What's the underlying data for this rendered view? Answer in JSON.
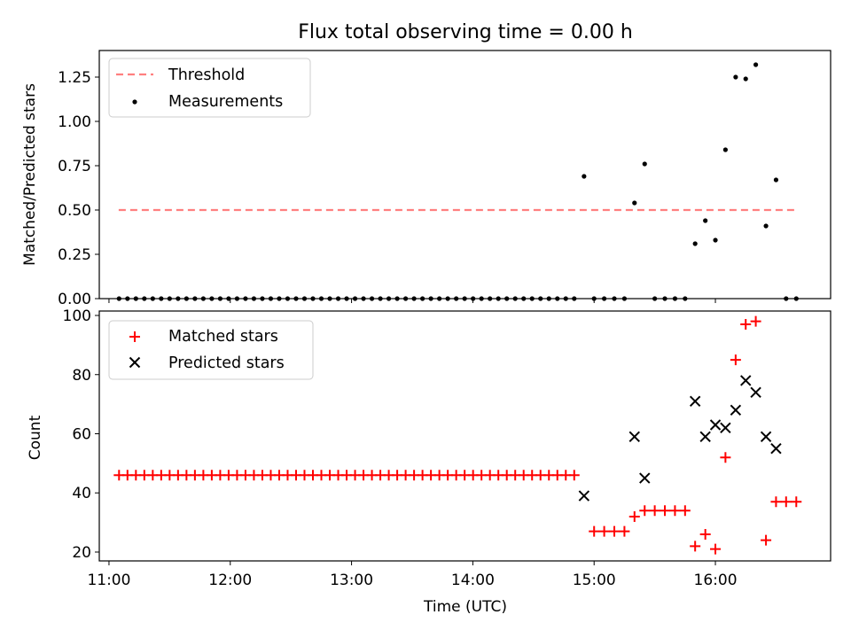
{
  "chart_data": [
    {
      "type": "scatter",
      "title": "Flux total observing time = 0.00 h",
      "ylabel": "Matched/Predicted stars",
      "xlabel": "",
      "xlim": [
        10.92,
        16.95
      ],
      "ylim": [
        0,
        1.4
      ],
      "yticks": [
        0.0,
        0.25,
        0.5,
        0.75,
        1.0,
        1.25
      ],
      "ytick_labels": [
        "0.00",
        "0.25",
        "0.50",
        "0.75",
        "1.00",
        "1.25"
      ],
      "legend": {
        "position": "upper-left",
        "entries": [
          {
            "label": "Threshold",
            "kind": "dashed-line",
            "color": "#ff7f7f"
          },
          {
            "label": "Measurements",
            "kind": "dot",
            "color": "#000000"
          }
        ]
      },
      "threshold": {
        "value": 0.5,
        "x_start": 11.08,
        "x_end": 16.67,
        "color": "#ff7f7f"
      },
      "series": [
        {
          "name": "Measurements",
          "marker": "dot",
          "color": "#000000",
          "x": [
            11.083,
            11.1525,
            11.222,
            11.2915,
            11.361,
            11.4305,
            11.5,
            11.5695,
            11.639,
            11.7085,
            11.778,
            11.8475,
            11.917,
            11.9865,
            12.056,
            12.1255,
            12.195,
            12.2645,
            12.334,
            12.4035,
            12.473,
            12.5425,
            12.612,
            12.6815,
            12.751,
            12.8205,
            12.89,
            12.9595,
            13.029,
            13.0985,
            13.168,
            13.2375,
            13.307,
            13.3765,
            13.446,
            13.5155,
            13.585,
            13.6545,
            13.724,
            13.7935,
            13.863,
            13.9325,
            14.002,
            14.0715,
            14.141,
            14.2105,
            14.28,
            14.3495,
            14.419,
            14.4885,
            14.558,
            14.6275,
            14.697,
            14.7665,
            14.836,
            14.917,
            15.0,
            15.0833,
            15.1667,
            15.25,
            15.333,
            15.417,
            15.5,
            15.5833,
            15.6667,
            15.75,
            15.833,
            15.917,
            16.0,
            16.083,
            16.167,
            16.25,
            16.333,
            16.417,
            16.5,
            16.583,
            16.667
          ],
          "y": [
            0,
            0,
            0,
            0,
            0,
            0,
            0,
            0,
            0,
            0,
            0,
            0,
            0,
            0,
            0,
            0,
            0,
            0,
            0,
            0,
            0,
            0,
            0,
            0,
            0,
            0,
            0,
            0,
            0,
            0,
            0,
            0,
            0,
            0,
            0,
            0,
            0,
            0,
            0,
            0,
            0,
            0,
            0,
            0,
            0,
            0,
            0,
            0,
            0,
            0,
            0,
            0,
            0,
            0,
            0,
            0.69,
            0,
            0,
            0,
            0,
            0.54,
            0.76,
            0,
            0,
            0,
            0,
            0.31,
            0.44,
            0.33,
            0.84,
            1.25,
            1.24,
            1.32,
            0.41,
            0.67,
            0,
            0
          ]
        }
      ]
    },
    {
      "type": "scatter",
      "title": "",
      "ylabel": "Count",
      "xlabel": "Time (UTC)",
      "xlim": [
        10.92,
        16.95
      ],
      "ylim": [
        17,
        101.5
      ],
      "xticks": [
        11,
        12,
        13,
        14,
        15,
        16
      ],
      "xtick_labels": [
        "11:00",
        "12:00",
        "13:00",
        "14:00",
        "15:00",
        "16:00"
      ],
      "yticks": [
        20,
        40,
        60,
        80,
        100
      ],
      "ytick_labels": [
        "20",
        "40",
        "60",
        "80",
        "100"
      ],
      "legend": {
        "position": "upper-left",
        "entries": [
          {
            "label": "Matched stars",
            "kind": "plus",
            "color": "#ff0000"
          },
          {
            "label": "Predicted stars",
            "kind": "x",
            "color": "#000000"
          }
        ]
      },
      "series": [
        {
          "name": "Matched stars",
          "marker": "plus",
          "color": "#ff0000",
          "x": [
            11.083,
            11.1525,
            11.222,
            11.2915,
            11.361,
            11.4305,
            11.5,
            11.5695,
            11.639,
            11.7085,
            11.778,
            11.8475,
            11.917,
            11.9865,
            12.056,
            12.1255,
            12.195,
            12.2645,
            12.334,
            12.4035,
            12.473,
            12.5425,
            12.612,
            12.6815,
            12.751,
            12.8205,
            12.89,
            12.9595,
            13.029,
            13.0985,
            13.168,
            13.2375,
            13.307,
            13.3765,
            13.446,
            13.5155,
            13.585,
            13.6545,
            13.724,
            13.7935,
            13.863,
            13.9325,
            14.002,
            14.0715,
            14.141,
            14.2105,
            14.28,
            14.3495,
            14.419,
            14.4885,
            14.558,
            14.6275,
            14.697,
            14.7665,
            14.836,
            15.0,
            15.0833,
            15.1667,
            15.25,
            15.333,
            15.417,
            15.5,
            15.5833,
            15.6667,
            15.75,
            15.833,
            15.917,
            16.0,
            16.083,
            16.167,
            16.25,
            16.333,
            16.417,
            16.5,
            16.583,
            16.667
          ],
          "y": [
            46,
            46,
            46,
            46,
            46,
            46,
            46,
            46,
            46,
            46,
            46,
            46,
            46,
            46,
            46,
            46,
            46,
            46,
            46,
            46,
            46,
            46,
            46,
            46,
            46,
            46,
            46,
            46,
            46,
            46,
            46,
            46,
            46,
            46,
            46,
            46,
            46,
            46,
            46,
            46,
            46,
            46,
            46,
            46,
            46,
            46,
            46,
            46,
            46,
            46,
            46,
            46,
            46,
            46,
            46,
            27,
            27,
            27,
            27,
            32,
            34,
            34,
            34,
            34,
            34,
            22,
            26,
            21,
            52,
            85,
            97,
            98,
            24,
            37,
            37,
            37
          ]
        },
        {
          "name": "Predicted stars",
          "marker": "x",
          "color": "#000000",
          "x": [
            14.917,
            15.333,
            15.417,
            15.833,
            15.917,
            16.0,
            16.083,
            16.167,
            16.25,
            16.333,
            16.417,
            16.5
          ],
          "y": [
            39,
            59,
            45,
            71,
            59,
            63,
            62,
            68,
            78,
            74,
            59,
            55
          ]
        }
      ]
    }
  ]
}
